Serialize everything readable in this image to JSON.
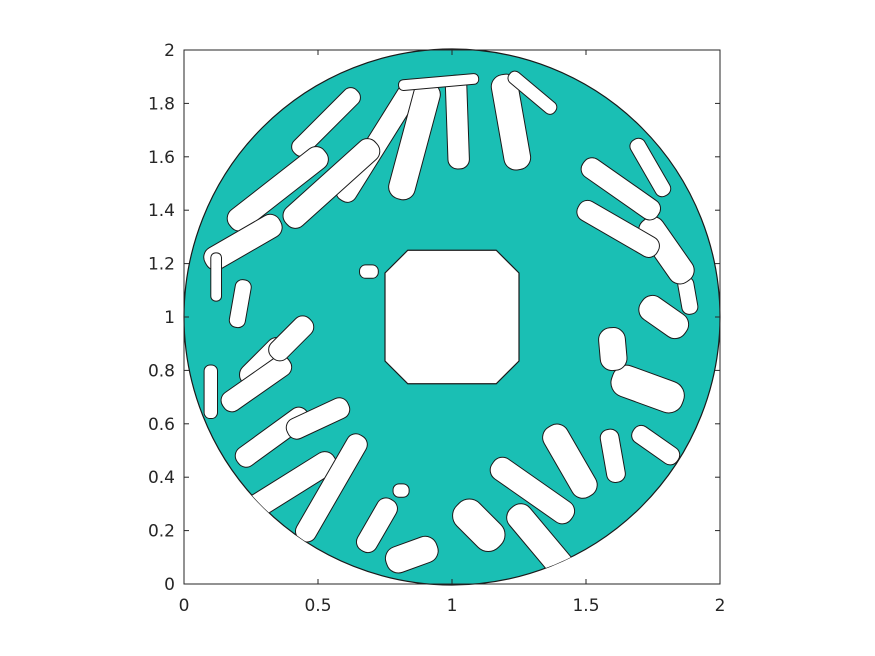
{
  "chart_data": {
    "type": "contour-fill",
    "xlim": [
      0,
      2
    ],
    "ylim": [
      0,
      2
    ],
    "xticks": [
      "0",
      "0.5",
      "1",
      "1.5",
      "2"
    ],
    "yticks": [
      "0",
      "0.2",
      "0.4",
      "0.6",
      "0.8",
      "1",
      "1.2",
      "1.4",
      "1.6",
      "1.8",
      "2"
    ],
    "xtick_values": [
      0,
      0.5,
      1,
      1.5,
      2
    ],
    "ytick_values": [
      0,
      0.2,
      0.4,
      0.6,
      0.8,
      1,
      1.2,
      1.4,
      1.6,
      1.8,
      2
    ],
    "grid": false,
    "fill_color": "#1abfb4",
    "edge_color": "#1a1a1a",
    "structure": {
      "outer_disk": {
        "center": [
          1,
          1
        ],
        "radius": 1.0
      },
      "inner_hole": {
        "shape": "octagon",
        "center": [
          1,
          1
        ],
        "half_width": 0.25,
        "chamfer": 0.085
      },
      "voids": [
        {
          "cx": 0.53,
          "cy": 1.73,
          "w": 0.07,
          "l": 0.33,
          "angle": 45
        },
        {
          "cx": 0.72,
          "cy": 1.65,
          "w": 0.08,
          "l": 0.5,
          "angle": 58
        },
        {
          "cx": 0.86,
          "cy": 1.66,
          "w": 0.1,
          "l": 0.45,
          "angle": 75
        },
        {
          "cx": 1.02,
          "cy": 1.73,
          "w": 0.08,
          "l": 0.35,
          "angle": 92
        },
        {
          "cx": 1.22,
          "cy": 1.73,
          "w": 0.1,
          "l": 0.36,
          "angle": 100
        },
        {
          "cx": 0.35,
          "cy": 1.48,
          "w": 0.09,
          "l": 0.45,
          "angle": 38
        },
        {
          "cx": 0.55,
          "cy": 1.5,
          "w": 0.09,
          "l": 0.45,
          "angle": 42
        },
        {
          "cx": 0.22,
          "cy": 1.28,
          "w": 0.09,
          "l": 0.32,
          "angle": 30
        },
        {
          "cx": 0.21,
          "cy": 1.05,
          "w": 0.06,
          "l": 0.18,
          "angle": 80
        },
        {
          "cx": 0.12,
          "cy": 1.15,
          "w": 0.04,
          "l": 0.18,
          "angle": 90
        },
        {
          "cx": 0.1,
          "cy": 0.72,
          "w": 0.05,
          "l": 0.2,
          "angle": 90
        },
        {
          "cx": 0.3,
          "cy": 0.83,
          "w": 0.09,
          "l": 0.22,
          "angle": 45
        },
        {
          "cx": 0.27,
          "cy": 0.75,
          "w": 0.08,
          "l": 0.3,
          "angle": 35
        },
        {
          "cx": 0.4,
          "cy": 0.92,
          "w": 0.08,
          "l": 0.2,
          "angle": 45
        },
        {
          "cx": 0.33,
          "cy": 0.55,
          "w": 0.08,
          "l": 0.32,
          "angle": 36
        },
        {
          "cx": 0.35,
          "cy": 0.34,
          "w": 0.09,
          "l": 0.5,
          "angle": 32
        },
        {
          "cx": 0.55,
          "cy": 0.36,
          "w": 0.08,
          "l": 0.45,
          "angle": 60
        },
        {
          "cx": 0.5,
          "cy": 0.62,
          "w": 0.08,
          "l": 0.25,
          "angle": 25
        },
        {
          "cx": 0.72,
          "cy": 0.22,
          "w": 0.08,
          "l": 0.22,
          "angle": 60
        },
        {
          "cx": 0.81,
          "cy": 0.35,
          "w": 0.05,
          "l": 0.06,
          "angle": 0
        },
        {
          "cx": 0.85,
          "cy": 0.11,
          "w": 0.1,
          "l": 0.2,
          "angle": 20
        },
        {
          "cx": 1.1,
          "cy": 0.22,
          "w": 0.12,
          "l": 0.22,
          "angle": 135
        },
        {
          "cx": 1.33,
          "cy": 0.16,
          "w": 0.1,
          "l": 0.33,
          "angle": 130
        },
        {
          "cx": 1.3,
          "cy": 0.35,
          "w": 0.09,
          "l": 0.36,
          "angle": 145
        },
        {
          "cx": 1.44,
          "cy": 0.46,
          "w": 0.1,
          "l": 0.3,
          "angle": 120
        },
        {
          "cx": 1.6,
          "cy": 0.48,
          "w": 0.07,
          "l": 0.2,
          "angle": 100
        },
        {
          "cx": 1.76,
          "cy": 0.52,
          "w": 0.07,
          "l": 0.2,
          "angle": 145
        },
        {
          "cx": 1.73,
          "cy": 0.73,
          "w": 0.12,
          "l": 0.28,
          "angle": 160
        },
        {
          "cx": 1.6,
          "cy": 0.88,
          "w": 0.1,
          "l": 0.16,
          "angle": 95
        },
        {
          "cx": 1.79,
          "cy": 1.0,
          "w": 0.1,
          "l": 0.2,
          "angle": 145
        },
        {
          "cx": 1.88,
          "cy": 1.08,
          "w": 0.06,
          "l": 0.14,
          "angle": 100
        },
        {
          "cx": 1.8,
          "cy": 1.25,
          "w": 0.1,
          "l": 0.28,
          "angle": 125
        },
        {
          "cx": 1.62,
          "cy": 1.33,
          "w": 0.08,
          "l": 0.34,
          "angle": 150
        },
        {
          "cx": 1.63,
          "cy": 1.48,
          "w": 0.08,
          "l": 0.34,
          "angle": 145
        },
        {
          "cx": 1.74,
          "cy": 1.56,
          "w": 0.06,
          "l": 0.24,
          "angle": 120
        },
        {
          "cx": 0.69,
          "cy": 1.17,
          "w": 0.05,
          "l": 0.07,
          "angle": 0
        },
        {
          "cx": 0.95,
          "cy": 1.88,
          "w": 0.04,
          "l": 0.3,
          "angle": 5
        },
        {
          "cx": 1.3,
          "cy": 1.84,
          "w": 0.05,
          "l": 0.22,
          "angle": 140
        }
      ]
    }
  }
}
